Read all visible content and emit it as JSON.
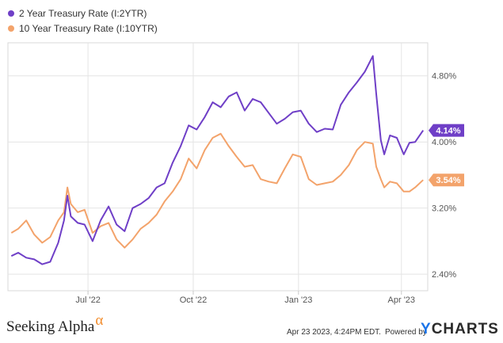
{
  "chart_data": {
    "type": "line",
    "x_ticks": [
      "Jul '22",
      "Oct '22",
      "Jan '23",
      "Apr '23"
    ],
    "y_ticks": [
      "2.40%",
      "3.20%",
      "4.00%",
      "4.80%"
    ],
    "ylim": [
      2.2,
      5.2
    ],
    "grid": true,
    "legend": "top-left",
    "series": [
      {
        "name": "2 Year Treasury Rate (I:2YTR)",
        "color": "#6f3fc7",
        "end_label": "4.14%",
        "points": [
          [
            "2022-04-25",
            2.62
          ],
          [
            "2022-05-01",
            2.66
          ],
          [
            "2022-05-08",
            2.6
          ],
          [
            "2022-05-15",
            2.58
          ],
          [
            "2022-05-22",
            2.52
          ],
          [
            "2022-05-29",
            2.55
          ],
          [
            "2022-06-05",
            2.78
          ],
          [
            "2022-06-10",
            3.05
          ],
          [
            "2022-06-13",
            3.35
          ],
          [
            "2022-06-16",
            3.1
          ],
          [
            "2022-06-22",
            3.02
          ],
          [
            "2022-06-28",
            3.0
          ],
          [
            "2022-07-05",
            2.8
          ],
          [
            "2022-07-12",
            3.05
          ],
          [
            "2022-07-19",
            3.22
          ],
          [
            "2022-07-26",
            3.0
          ],
          [
            "2022-08-02",
            2.92
          ],
          [
            "2022-08-09",
            3.2
          ],
          [
            "2022-08-16",
            3.25
          ],
          [
            "2022-08-23",
            3.32
          ],
          [
            "2022-08-30",
            3.45
          ],
          [
            "2022-09-06",
            3.5
          ],
          [
            "2022-09-13",
            3.75
          ],
          [
            "2022-09-20",
            3.95
          ],
          [
            "2022-09-27",
            4.2
          ],
          [
            "2022-10-04",
            4.15
          ],
          [
            "2022-10-11",
            4.3
          ],
          [
            "2022-10-18",
            4.48
          ],
          [
            "2022-10-25",
            4.42
          ],
          [
            "2022-11-01",
            4.55
          ],
          [
            "2022-11-08",
            4.6
          ],
          [
            "2022-11-15",
            4.38
          ],
          [
            "2022-11-22",
            4.52
          ],
          [
            "2022-11-29",
            4.48
          ],
          [
            "2022-12-06",
            4.35
          ],
          [
            "2022-12-13",
            4.22
          ],
          [
            "2022-12-20",
            4.28
          ],
          [
            "2022-12-27",
            4.36
          ],
          [
            "2023-01-03",
            4.38
          ],
          [
            "2023-01-10",
            4.22
          ],
          [
            "2023-01-17",
            4.12
          ],
          [
            "2023-01-24",
            4.16
          ],
          [
            "2023-01-31",
            4.15
          ],
          [
            "2023-02-07",
            4.45
          ],
          [
            "2023-02-14",
            4.6
          ],
          [
            "2023-02-21",
            4.72
          ],
          [
            "2023-02-28",
            4.85
          ],
          [
            "2023-03-07",
            5.04
          ],
          [
            "2023-03-10",
            4.58
          ],
          [
            "2023-03-14",
            4.02
          ],
          [
            "2023-03-17",
            3.85
          ],
          [
            "2023-03-22",
            4.08
          ],
          [
            "2023-03-28",
            4.05
          ],
          [
            "2023-04-03",
            3.85
          ],
          [
            "2023-04-08",
            3.99
          ],
          [
            "2023-04-13",
            4.0
          ],
          [
            "2023-04-20",
            4.14
          ]
        ]
      },
      {
        "name": "10 Year Treasury Rate (I:10YTR)",
        "color": "#f3a36b",
        "end_label": "3.54%",
        "points": [
          [
            "2022-04-25",
            2.9
          ],
          [
            "2022-05-01",
            2.95
          ],
          [
            "2022-05-08",
            3.05
          ],
          [
            "2022-05-15",
            2.88
          ],
          [
            "2022-05-22",
            2.78
          ],
          [
            "2022-05-29",
            2.85
          ],
          [
            "2022-06-05",
            3.05
          ],
          [
            "2022-06-10",
            3.15
          ],
          [
            "2022-06-13",
            3.45
          ],
          [
            "2022-06-16",
            3.25
          ],
          [
            "2022-06-22",
            3.15
          ],
          [
            "2022-06-28",
            3.18
          ],
          [
            "2022-07-05",
            2.9
          ],
          [
            "2022-07-12",
            2.98
          ],
          [
            "2022-07-19",
            3.02
          ],
          [
            "2022-07-26",
            2.82
          ],
          [
            "2022-08-02",
            2.72
          ],
          [
            "2022-08-09",
            2.82
          ],
          [
            "2022-08-16",
            2.95
          ],
          [
            "2022-08-23",
            3.02
          ],
          [
            "2022-08-30",
            3.12
          ],
          [
            "2022-09-06",
            3.28
          ],
          [
            "2022-09-13",
            3.4
          ],
          [
            "2022-09-20",
            3.55
          ],
          [
            "2022-09-27",
            3.8
          ],
          [
            "2022-10-04",
            3.68
          ],
          [
            "2022-10-11",
            3.9
          ],
          [
            "2022-10-18",
            4.05
          ],
          [
            "2022-10-25",
            4.1
          ],
          [
            "2022-11-01",
            3.95
          ],
          [
            "2022-11-08",
            3.82
          ],
          [
            "2022-11-15",
            3.7
          ],
          [
            "2022-11-22",
            3.72
          ],
          [
            "2022-11-29",
            3.55
          ],
          [
            "2022-12-06",
            3.52
          ],
          [
            "2022-12-13",
            3.5
          ],
          [
            "2022-12-20",
            3.68
          ],
          [
            "2022-12-27",
            3.85
          ],
          [
            "2023-01-03",
            3.82
          ],
          [
            "2023-01-10",
            3.55
          ],
          [
            "2023-01-17",
            3.48
          ],
          [
            "2023-01-24",
            3.5
          ],
          [
            "2023-01-31",
            3.52
          ],
          [
            "2023-02-07",
            3.6
          ],
          [
            "2023-02-14",
            3.72
          ],
          [
            "2023-02-21",
            3.9
          ],
          [
            "2023-02-28",
            4.0
          ],
          [
            "2023-03-07",
            3.98
          ],
          [
            "2023-03-10",
            3.7
          ],
          [
            "2023-03-14",
            3.55
          ],
          [
            "2023-03-17",
            3.45
          ],
          [
            "2023-03-22",
            3.52
          ],
          [
            "2023-03-28",
            3.5
          ],
          [
            "2023-04-03",
            3.4
          ],
          [
            "2023-04-08",
            3.4
          ],
          [
            "2023-04-13",
            3.45
          ],
          [
            "2023-04-20",
            3.54
          ]
        ]
      }
    ]
  },
  "footer": {
    "brand": "Seeking Alpha",
    "brand_symbol": "α",
    "date": "Apr 23 2023, 4:24PM EDT.",
    "powered": "Powered by",
    "ycharts_y": "Y",
    "ycharts_rest": "CHARTS"
  }
}
